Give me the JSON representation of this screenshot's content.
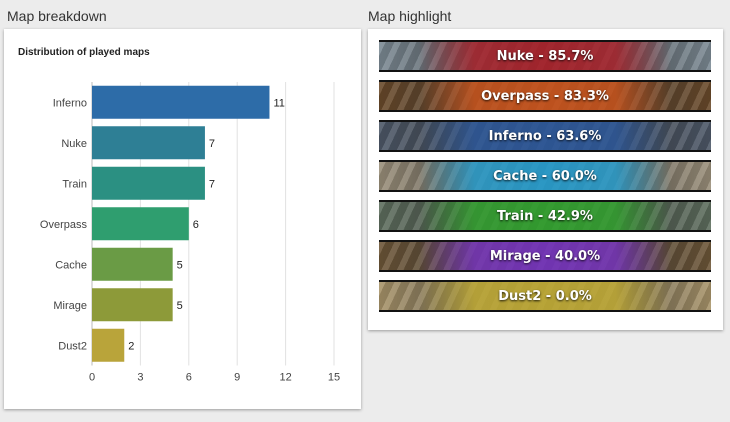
{
  "sections": {
    "left_title": "Map breakdown",
    "right_title": "Map highlight"
  },
  "chart_data": {
    "type": "bar",
    "orientation": "horizontal",
    "title": "Distribution of played maps",
    "categories": [
      "Inferno",
      "Nuke",
      "Train",
      "Overpass",
      "Cache",
      "Mirage",
      "Dust2"
    ],
    "values": [
      11,
      7,
      7,
      6,
      5,
      5,
      2
    ],
    "colors": [
      "#2d6ca8",
      "#2e7f95",
      "#2b9082",
      "#2f9e6f",
      "#6a9b45",
      "#8d9a39",
      "#b9a43a"
    ],
    "xlim": [
      0,
      15
    ],
    "xticks": [
      "0",
      "3",
      "6",
      "9",
      "12",
      "15"
    ],
    "grid": true,
    "xlabel": "",
    "ylabel": ""
  },
  "highlights": [
    {
      "label": "Nuke - 85.7%",
      "color": "#b0222b",
      "bg": "#7c8a94"
    },
    {
      "label": "Overpass - 83.3%",
      "color": "#d2561b",
      "bg": "#6a4a2a"
    },
    {
      "label": "Inferno - 63.6%",
      "color": "#2c5aa0",
      "bg": "#4d5868"
    },
    {
      "label": "Cache - 60.0%",
      "color": "#27a3d6",
      "bg": "#9a8f7a"
    },
    {
      "label": "Train - 42.9%",
      "color": "#32a82e",
      "bg": "#5e6e5e"
    },
    {
      "label": "Mirage - 40.0%",
      "color": "#7a34c4",
      "bg": "#6d5638"
    },
    {
      "label": "Dust2 - 0.0%",
      "color": "#c9b235",
      "bg": "#a8946a"
    }
  ]
}
